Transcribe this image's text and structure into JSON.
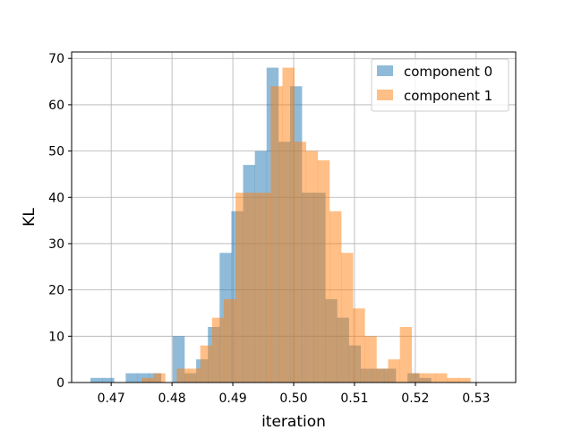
{
  "chart_data": {
    "type": "histogram",
    "title": "",
    "xlabel": "iteration",
    "ylabel": "KL",
    "xlim": [
      0.4635,
      0.5365
    ],
    "ylim": [
      0,
      71.4
    ],
    "xticks": [
      0.47,
      0.48,
      0.49,
      0.5,
      0.51,
      0.52,
      0.53
    ],
    "xtick_labels": [
      "0.47",
      "0.48",
      "0.49",
      "0.50",
      "0.51",
      "0.52",
      "0.53"
    ],
    "yticks": [
      0,
      10,
      20,
      30,
      40,
      50,
      60,
      70
    ],
    "ytick_labels": [
      "0",
      "10",
      "20",
      "30",
      "40",
      "50",
      "60",
      "70"
    ],
    "grid": true,
    "legend_position": "top-right",
    "series": [
      {
        "name": "component 0",
        "color": "#1f77b4",
        "opacity": 0.5,
        "bin_start": 0.4666,
        "bin_width": 0.00193,
        "counts": [
          1,
          1,
          0,
          2,
          2,
          2,
          0,
          10,
          2,
          5,
          12,
          28,
          37,
          47,
          50,
          68,
          52,
          64,
          41,
          41,
          18,
          14,
          8,
          3,
          3,
          3,
          0,
          2,
          1
        ]
      },
      {
        "name": "component 1",
        "color": "#ff7f0e",
        "opacity": 0.5,
        "bin_start": 0.475,
        "bin_width": 0.00193,
        "counts": [
          1,
          2,
          0,
          3,
          3,
          8,
          14,
          18,
          41,
          41,
          41,
          64,
          68,
          52,
          50,
          48,
          37,
          28,
          16,
          10,
          3,
          5,
          12,
          2,
          2,
          2,
          1,
          1
        ]
      }
    ]
  }
}
